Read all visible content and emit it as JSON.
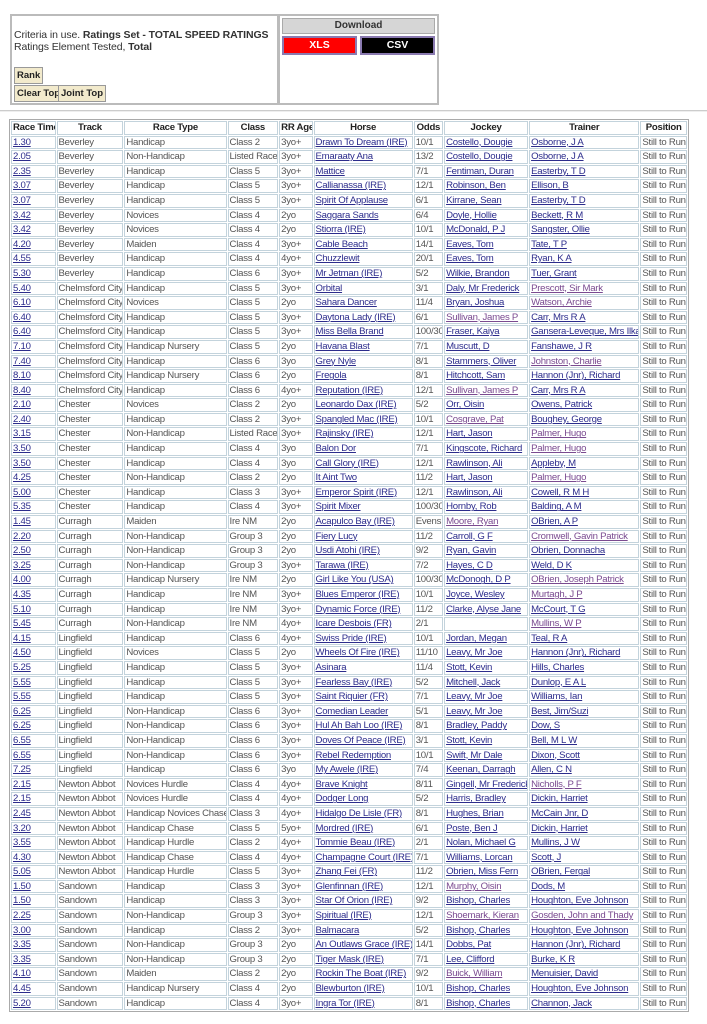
{
  "criteria": {
    "prefix": "Criteria in use. ",
    "ratings_set": "Ratings Set - TOTAL SPEED RATINGS",
    "element_prefix": "Ratings Element Tested, ",
    "element": "Total"
  },
  "buttons": {
    "rank": "Rank",
    "clear_top": "Clear Top",
    "joint_top": "Joint Top"
  },
  "download": {
    "title": "Download",
    "xls": "XLS",
    "csv": "CSV",
    "xls_color": "#ff0000",
    "csv_color": "#000000"
  },
  "colors": {
    "link": "#2c2c8c",
    "visited_link": "#7a4a90"
  },
  "table": {
    "headers": [
      "Race Time",
      "Track",
      "Race Type",
      "Class",
      "RR Age",
      "Horse",
      "Odds",
      "Jockey",
      "Trainer",
      "Position"
    ],
    "rows": [
      [
        "1.30",
        "Beverley",
        "Handicap",
        "Class 2",
        "3yo+",
        "Drawn To Dream (IRE)",
        "10/1",
        "Costello, Dougie",
        "Osborne, J A",
        "Still to Run",
        []
      ],
      [
        "2.05",
        "Beverley",
        "Non-Handicap",
        "Listed Race",
        "3yo+",
        "Emaraaty Ana",
        "13/2",
        "Costello, Dougie",
        "Osborne, J A",
        "Still to Run",
        []
      ],
      [
        "2.35",
        "Beverley",
        "Handicap",
        "Class 5",
        "3yo+",
        "Mattice",
        "7/1",
        "Fentiman, Duran",
        "Easterby, T D",
        "Still to Run",
        []
      ],
      [
        "3.07",
        "Beverley",
        "Handicap",
        "Class 5",
        "3yo+",
        "Callianassa (IRE)",
        "12/1",
        "Robinson, Ben",
        "Ellison, B",
        "Still to Run",
        []
      ],
      [
        "3.07",
        "Beverley",
        "Handicap",
        "Class 5",
        "3yo+",
        "Spirit Of Applause",
        "6/1",
        "Kirrane, Sean",
        "Easterby, T D",
        "Still to Run",
        []
      ],
      [
        "3.42",
        "Beverley",
        "Novices",
        "Class 4",
        "2yo",
        "Saggara Sands",
        "6/4",
        "Doyle, Hollie",
        "Beckett, R M",
        "Still to Run",
        []
      ],
      [
        "3.42",
        "Beverley",
        "Novices",
        "Class 4",
        "2yo",
        "Stiorra (IRE)",
        "10/1",
        "McDonald, P J",
        "Sangster, Ollie",
        "Still to Run",
        []
      ],
      [
        "4.20",
        "Beverley",
        "Maiden",
        "Class 4",
        "3yo+",
        "Cable Beach",
        "14/1",
        "Eaves, Tom",
        "Tate, T P",
        "Still to Run",
        []
      ],
      [
        "4.55",
        "Beverley",
        "Handicap",
        "Class 4",
        "4yo+",
        "Chuzzlewit",
        "20/1",
        "Eaves, Tom",
        "Ryan, K A",
        "Still to Run",
        []
      ],
      [
        "5.30",
        "Beverley",
        "Handicap",
        "Class 6",
        "3yo+",
        "Mr Jetman (IRE)",
        "5/2",
        "Wilkie, Brandon",
        "Tuer, Grant",
        "Still to Run",
        []
      ],
      [
        "5.40",
        "Chelmsford City",
        "Handicap",
        "Class 5",
        "3yo+",
        "Orbital",
        "3/1",
        "Daly, Mr Frederick",
        "Prescott, Sir Mark",
        "Still to Run",
        [
          "trainer"
        ]
      ],
      [
        "6.10",
        "Chelmsford City",
        "Novices",
        "Class 5",
        "2yo",
        "Sahara Dancer",
        "11/4",
        "Bryan, Joshua",
        "Watson, Archie",
        "Still to Run",
        [
          "trainer"
        ]
      ],
      [
        "6.40",
        "Chelmsford City",
        "Handicap",
        "Class 5",
        "3yo+",
        "Daytona Lady (IRE)",
        "6/1",
        "Sullivan, James P",
        "Carr, Mrs R A",
        "Still to Run",
        [
          "jockey"
        ]
      ],
      [
        "6.40",
        "Chelmsford City",
        "Handicap",
        "Class 5",
        "3yo+",
        "Miss Bella Brand",
        "100/30",
        "Fraser, Kaiya",
        "Gansera-Leveque, Mrs Ilka",
        "Still to Run",
        []
      ],
      [
        "7.10",
        "Chelmsford City",
        "Handicap Nursery",
        "Class 5",
        "2yo",
        "Havana Blast",
        "7/1",
        "Muscutt, D",
        "Fanshawe, J R",
        "Still to Run",
        []
      ],
      [
        "7.40",
        "Chelmsford City",
        "Handicap",
        "Class 6",
        "3yo",
        "Grey Nyle",
        "8/1",
        "Stammers, Oliver",
        "Johnston, Charlie",
        "Still to Run",
        [
          "trainer"
        ]
      ],
      [
        "8.10",
        "Chelmsford City",
        "Handicap Nursery",
        "Class 6",
        "2yo",
        "Fregola",
        "8/1",
        "Hitchcott, Sam",
        "Hannon (Jnr), Richard",
        "Still to Run",
        []
      ],
      [
        "8.40",
        "Chelmsford City",
        "Handicap",
        "Class 6",
        "4yo+",
        "Reputation (IRE)",
        "12/1",
        "Sullivan, James P",
        "Carr, Mrs R A",
        "Still to Run",
        [
          "jockey"
        ]
      ],
      [
        "2.10",
        "Chester",
        "Novices",
        "Class 2",
        "2yo",
        "Leonardo Dax (IRE)",
        "5/2",
        "Orr, Oisin",
        "Owens, Patrick",
        "Still to Run",
        []
      ],
      [
        "2.40",
        "Chester",
        "Handicap",
        "Class 2",
        "3yo+",
        "Spangled Mac (IRE)",
        "10/1",
        "Cosgrave, Pat",
        "Boughey, George",
        "Still to Run",
        [
          "jockey"
        ]
      ],
      [
        "3.15",
        "Chester",
        "Non-Handicap",
        "Listed Race",
        "3yo+",
        "Rajinsky (IRE)",
        "12/1",
        "Hart, Jason",
        "Palmer, Hugo",
        "Still to Run",
        [
          "trainer"
        ]
      ],
      [
        "3.50",
        "Chester",
        "Handicap",
        "Class 4",
        "3yo",
        "Balon Dor",
        "7/1",
        "Kingscote, Richard",
        "Palmer, Hugo",
        "Still to Run",
        [
          "trainer"
        ]
      ],
      [
        "3.50",
        "Chester",
        "Handicap",
        "Class 4",
        "3yo",
        "Call Glory (IRE)",
        "12/1",
        "Rawlinson, Ali",
        "Appleby, M",
        "Still to Run",
        []
      ],
      [
        "4.25",
        "Chester",
        "Non-Handicap",
        "Class 2",
        "2yo",
        "It Aint Two",
        "11/2",
        "Hart, Jason",
        "Palmer, Hugo",
        "Still to Run",
        [
          "trainer"
        ]
      ],
      [
        "5.00",
        "Chester",
        "Handicap",
        "Class 3",
        "3yo+",
        "Emperor Spirit (IRE)",
        "12/1",
        "Rawlinson, Ali",
        "Cowell, R M H",
        "Still to Run",
        []
      ],
      [
        "5.35",
        "Chester",
        "Handicap",
        "Class 4",
        "3yo+",
        "Spirit Mixer",
        "100/30",
        "Hornby, Rob",
        "Balding, A M",
        "Still to Run",
        []
      ],
      [
        "1.45",
        "Curragh",
        "Maiden",
        "Ire NM",
        "2yo",
        "Acapulco Bay (IRE)",
        "Evens",
        "Moore, Ryan",
        "OBrien, A P",
        "Still to Run",
        [
          "jockey"
        ]
      ],
      [
        "2.20",
        "Curragh",
        "Non-Handicap",
        "Group 3",
        "2yo",
        "Fiery Lucy",
        "11/2",
        "Carroll, G F",
        "Cromwell, Gavin Patrick",
        "Still to Run",
        [
          "trainer"
        ]
      ],
      [
        "2.50",
        "Curragh",
        "Non-Handicap",
        "Group 3",
        "2yo",
        "Usdi Atohi (IRE)",
        "9/2",
        "Ryan, Gavin",
        "Obrien, Donnacha",
        "Still to Run",
        []
      ],
      [
        "3.25",
        "Curragh",
        "Non-Handicap",
        "Group 3",
        "3yo+",
        "Tarawa (IRE)",
        "7/2",
        "Hayes, C D",
        "Weld, D K",
        "Still to Run",
        []
      ],
      [
        "4.00",
        "Curragh",
        "Handicap Nursery",
        "Ire NM",
        "2yo",
        "Girl Like You (USA)",
        "100/30",
        "McDonogh, D P",
        "OBrien, Joseph Patrick",
        "Still to Run",
        [
          "trainer"
        ]
      ],
      [
        "4.35",
        "Curragh",
        "Handicap",
        "Ire NM",
        "3yo+",
        "Blues Emperor (IRE)",
        "10/1",
        "Joyce, Wesley",
        "Murtagh, J P",
        "Still to Run",
        [
          "trainer"
        ]
      ],
      [
        "5.10",
        "Curragh",
        "Handicap",
        "Ire NM",
        "3yo+",
        "Dynamic Force (IRE)",
        "11/2",
        "Clarke, Alyse Jane",
        "McCourt, T G",
        "Still to Run",
        []
      ],
      [
        "5.45",
        "Curragh",
        "Non-Handicap",
        "Ire NM",
        "4yo+",
        "Icare Desbois (FR)",
        "2/1",
        "",
        "Mullins, W P",
        "Still to Run",
        [
          "trainer"
        ]
      ],
      [
        "4.15",
        "Lingfield",
        "Handicap",
        "Class 6",
        "4yo+",
        "Swiss Pride (IRE)",
        "10/1",
        "Jordan, Megan",
        "Teal, R A",
        "Still to Run",
        []
      ],
      [
        "4.50",
        "Lingfield",
        "Novices",
        "Class 5",
        "2yo",
        "Wheels Of Fire (IRE)",
        "11/10",
        "Leavy, Mr Joe",
        "Hannon (Jnr), Richard",
        "Still to Run",
        []
      ],
      [
        "5.25",
        "Lingfield",
        "Handicap",
        "Class 5",
        "3yo+",
        "Asinara",
        "11/4",
        "Stott, Kevin",
        "Hills, Charles",
        "Still to Run",
        []
      ],
      [
        "5.55",
        "Lingfield",
        "Handicap",
        "Class 5",
        "3yo+",
        "Fearless Bay (IRE)",
        "5/2",
        "Mitchell, Jack",
        "Dunlop, E A L",
        "Still to Run",
        []
      ],
      [
        "5.55",
        "Lingfield",
        "Handicap",
        "Class 5",
        "3yo+",
        "Saint Riquier (FR)",
        "7/1",
        "Leavy, Mr Joe",
        "Williams, Ian",
        "Still to Run",
        []
      ],
      [
        "6.25",
        "Lingfield",
        "Non-Handicap",
        "Class 6",
        "3yo+",
        "Comedian Leader",
        "5/1",
        "Leavy, Mr Joe",
        "Best, Jim/Suzi",
        "Still to Run",
        []
      ],
      [
        "6.25",
        "Lingfield",
        "Non-Handicap",
        "Class 6",
        "3yo+",
        "Hul Ah Bah Loo (IRE)",
        "8/1",
        "Bradley, Paddy",
        "Dow, S",
        "Still to Run",
        []
      ],
      [
        "6.55",
        "Lingfield",
        "Non-Handicap",
        "Class 6",
        "3yo+",
        "Doves Of Peace (IRE)",
        "3/1",
        "Stott, Kevin",
        "Bell, M L W",
        "Still to Run",
        []
      ],
      [
        "6.55",
        "Lingfield",
        "Non-Handicap",
        "Class 6",
        "3yo+",
        "Rebel Redemption",
        "10/1",
        "Swift, Mr Dale",
        "Dixon, Scott",
        "Still to Run",
        []
      ],
      [
        "7.25",
        "Lingfield",
        "Handicap",
        "Class 6",
        "3yo",
        "My Awele (IRE)",
        "7/4",
        "Keenan, Darragh",
        "Allen, C N",
        "Still to Run",
        []
      ],
      [
        "2.15",
        "Newton Abbot",
        "Novices Hurdle",
        "Class 4",
        "4yo+",
        "Brave Knight",
        "8/11",
        "Gingell, Mr Frederick",
        "Nicholls, P F",
        "Still to Run",
        [
          "trainer"
        ]
      ],
      [
        "2.15",
        "Newton Abbot",
        "Novices Hurdle",
        "Class 4",
        "4yo+",
        "Dodger Long",
        "5/2",
        "Harris, Bradley",
        "Dickin, Harriet",
        "Still to Run",
        []
      ],
      [
        "2.45",
        "Newton Abbot",
        "Handicap Novices Chase",
        "Class 3",
        "4yo+",
        "Hidalgo De Lisle (FR)",
        "8/1",
        "Hughes, Brian",
        "McCain Jnr, D",
        "Still to Run",
        []
      ],
      [
        "3.20",
        "Newton Abbot",
        "Handicap Chase",
        "Class 5",
        "5yo+",
        "Mordred (IRE)",
        "6/1",
        "Poste, Ben J",
        "Dickin, Harriet",
        "Still to Run",
        []
      ],
      [
        "3.55",
        "Newton Abbot",
        "Handicap Hurdle",
        "Class 2",
        "4yo+",
        "Tommie Beau (IRE)",
        "2/1",
        "Nolan, Michael G",
        "Mullins, J W",
        "Still to Run",
        []
      ],
      [
        "4.30",
        "Newton Abbot",
        "Handicap Chase",
        "Class 4",
        "4yo+",
        "Champagne Court (IRE)",
        "7/1",
        "Williams, Lorcan",
        "Scott, J",
        "Still to Run",
        []
      ],
      [
        "5.05",
        "Newton Abbot",
        "Handicap Hurdle",
        "Class 5",
        "3yo+",
        "Zhang Fei (FR)",
        "11/2",
        "Obrien, Miss Fern",
        "OBrien, Fergal",
        "Still to Run",
        []
      ],
      [
        "1.50",
        "Sandown",
        "Handicap",
        "Class 3",
        "3yo+",
        "Glenfinnan (IRE)",
        "12/1",
        "Murphy, Oisin",
        "Dods, M",
        "Still to Run",
        [
          "jockey"
        ]
      ],
      [
        "1.50",
        "Sandown",
        "Handicap",
        "Class 3",
        "3yo+",
        "Star Of Orion (IRE)",
        "9/2",
        "Bishop, Charles",
        "Houghton, Eve Johnson",
        "Still to Run",
        []
      ],
      [
        "2.25",
        "Sandown",
        "Non-Handicap",
        "Group 3",
        "3yo+",
        "Spiritual (IRE)",
        "12/1",
        "Shoemark, Kieran",
        "Gosden, John and Thady",
        "Still to Run",
        [
          "jockey",
          "trainer"
        ]
      ],
      [
        "3.00",
        "Sandown",
        "Handicap",
        "Class 2",
        "3yo+",
        "Balmacara",
        "5/2",
        "Bishop, Charles",
        "Houghton, Eve Johnson",
        "Still to Run",
        []
      ],
      [
        "3.35",
        "Sandown",
        "Non-Handicap",
        "Group 3",
        "2yo",
        "An Outlaws Grace (IRE)",
        "14/1",
        "Dobbs, Pat",
        "Hannon (Jnr), Richard",
        "Still to Run",
        []
      ],
      [
        "3.35",
        "Sandown",
        "Non-Handicap",
        "Group 3",
        "2yo",
        "Tiger Mask (IRE)",
        "7/1",
        "Lee, Clifford",
        "Burke, K R",
        "Still to Run",
        []
      ],
      [
        "4.10",
        "Sandown",
        "Maiden",
        "Class 2",
        "2yo",
        "Rockin The Boat (IRE)",
        "9/2",
        "Buick, William",
        "Menuisier, David",
        "Still to Run",
        [
          "jockey"
        ]
      ],
      [
        "4.45",
        "Sandown",
        "Handicap Nursery",
        "Class 4",
        "2yo",
        "Blewburton (IRE)",
        "10/1",
        "Bishop, Charles",
        "Houghton, Eve Johnson",
        "Still to Run",
        []
      ],
      [
        "5.20",
        "Sandown",
        "Handicap",
        "Class 4",
        "3yo+",
        "Ingra Tor (IRE)",
        "8/1",
        "Bishop, Charles",
        "Channon, Jack",
        "Still to Run",
        []
      ]
    ]
  }
}
